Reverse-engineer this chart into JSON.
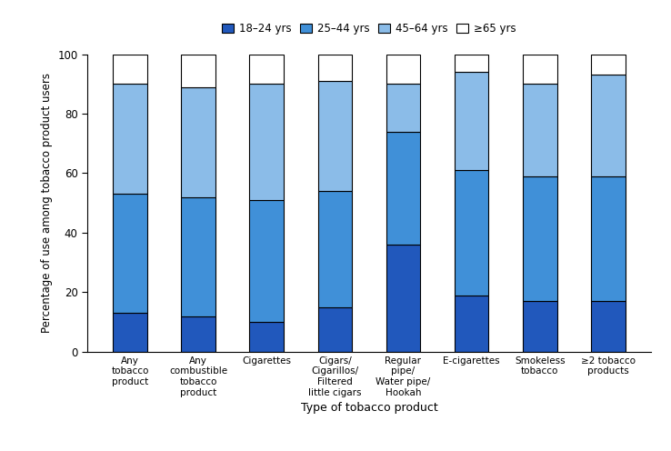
{
  "categories": [
    "Any\ntobacco\nproduct",
    "Any\ncombustible\ntobacco\nproduct",
    "Cigarettes",
    "Cigars/\nCigarillos/\nFiltered\nlittle cigars",
    "Regular\npipe/\nWater pipe/\nHookah",
    "E-cigarettes",
    "Smokeless\ntobacco",
    "≥2 tobacco\nproducts"
  ],
  "segment_18_24": [
    13,
    12,
    10,
    15,
    36,
    19,
    17,
    17
  ],
  "segment_25_44": [
    40,
    40,
    41,
    39,
    38,
    42,
    42,
    42
  ],
  "segment_45_64": [
    37,
    37,
    39,
    37,
    16,
    33,
    31,
    34
  ],
  "segment_65plus": [
    10,
    11,
    10,
    9,
    10,
    6,
    10,
    7
  ],
  "color_18_24": "#2158bc",
  "color_25_44": "#4090d8",
  "color_45_64": "#8bbce8",
  "color_65plus": "#ffffff",
  "ylabel": "Percentage of use among tobacco product users",
  "xlabel": "Type of tobacco product",
  "ylim": [
    0,
    100
  ],
  "yticks": [
    0,
    20,
    40,
    60,
    80,
    100
  ],
  "legend_labels": [
    "18–24 yrs",
    "25–44 yrs",
    "45–64 yrs",
    "≥65 yrs"
  ],
  "bar_width": 0.5,
  "figsize": [
    7.38,
    4.96
  ],
  "dpi": 100
}
